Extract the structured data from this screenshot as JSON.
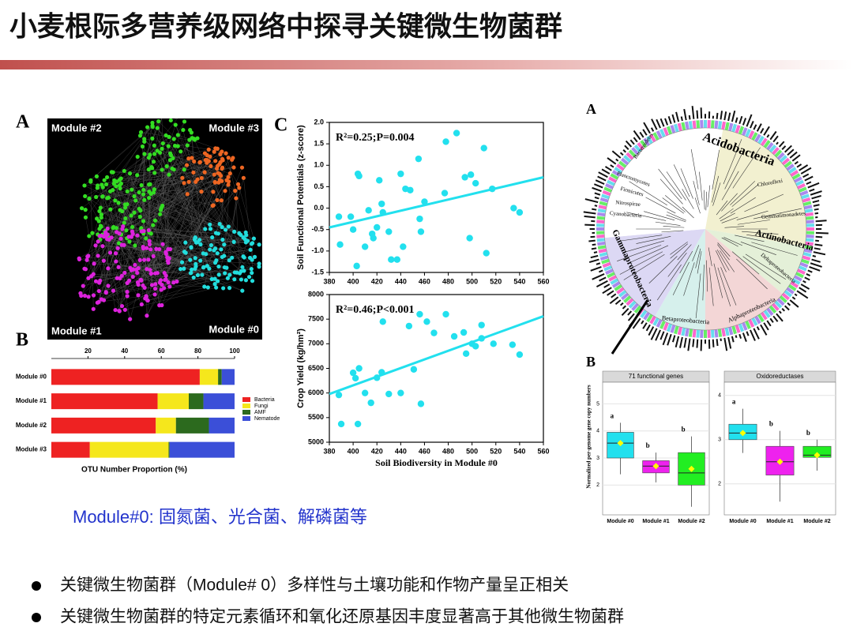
{
  "header": {
    "title": "小麦根际多营养级网络中探寻关键微生物菌群"
  },
  "network": {
    "panel": "A",
    "labels": [
      "Module #2",
      "Module #3",
      "Module #1",
      "Module #0"
    ]
  },
  "tree": {
    "panel": "A",
    "labels": [
      "Acidobacteria",
      "Chloroflexi",
      "Gemmatimonadetes",
      "Actinobacteria",
      "Deltaproteobacteria",
      "Alphaproteobacteria",
      "Betaproteobacteria",
      "Gammaproteobacteria",
      "Cyanobacteria",
      "Nitrospirae",
      "Firmicutes",
      "Planctomycetes",
      "Bacteroidetes"
    ]
  },
  "caption": "Module#0: 固氮菌、光合菌、解磷菌等",
  "bullets": [
    "关键微生物菌群（Module# 0）多样性与土壤功能和作物产量呈正相关",
    "关键微生物菌群的特定元素循环和氧化还原基因丰度显著高于其他微生物菌群"
  ],
  "chart_data": [
    {
      "type": "stacked-bar-h",
      "panel": "B",
      "xlabel": "OTU Number Proportion (%)",
      "categories": [
        "Module #0",
        "Module #1",
        "Module #2",
        "Module #3"
      ],
      "series": [
        {
          "name": "Bacteria",
          "color": "#ee2222",
          "values": [
            81,
            58,
            57,
            21
          ]
        },
        {
          "name": "Fungi",
          "color": "#f5e71c",
          "values": [
            10,
            17,
            11,
            43
          ]
        },
        {
          "name": "AMF",
          "color": "#2c6a1e",
          "values": [
            2,
            8,
            18,
            0.5
          ]
        },
        {
          "name": "Nematode",
          "color": "#3b4fd8",
          "values": [
            7,
            17,
            14,
            35.5
          ]
        }
      ],
      "xlim": [
        0,
        100
      ],
      "xticks": [
        20,
        40,
        60,
        80,
        100
      ],
      "legend": "right"
    },
    {
      "type": "scatter",
      "panel": "C",
      "annotation": "R²=0.25;P=0.004",
      "ylabel": "Soil Functional Potentials (z-score)",
      "color": "#22e0ee",
      "x": [
        388,
        389,
        398,
        400,
        403,
        404,
        405,
        410,
        413,
        416,
        417,
        420,
        422,
        424,
        425,
        430,
        432,
        437,
        440,
        442,
        444,
        448,
        455,
        456,
        457,
        460,
        478,
        477,
        487,
        494,
        498,
        499,
        503,
        510,
        512,
        517,
        535,
        540
      ],
      "values": [
        -0.2,
        -0.85,
        -0.2,
        -0.5,
        -1.35,
        0.8,
        0.75,
        -0.9,
        -0.05,
        -0.6,
        -0.7,
        -0.45,
        0.65,
        0.1,
        -0.1,
        -0.55,
        -1.2,
        -1.2,
        0.8,
        -0.9,
        0.45,
        0.42,
        1.15,
        -0.25,
        -0.55,
        0.15,
        1.55,
        0.35,
        1.75,
        0.72,
        -0.7,
        0.78,
        0.58,
        1.4,
        -1.05,
        0.45,
        0.0,
        -0.1
      ],
      "trend": {
        "x": [
          380,
          560
        ],
        "values": [
          -0.45,
          0.72
        ]
      },
      "xlim": [
        380,
        560
      ],
      "xticks": [
        380,
        400,
        420,
        440,
        460,
        480,
        500,
        520,
        540,
        560
      ],
      "ylim": [
        -1.5,
        2.0
      ],
      "yticks": [
        {
          "value": -1.5,
          "label": "-1.5"
        },
        {
          "value": -1,
          "label": "-1.0"
        },
        {
          "value": -0.5,
          "label": "-0.5"
        },
        {
          "value": 0,
          "label": "0.0"
        },
        {
          "value": 0.5,
          "label": "0.5"
        },
        {
          "value": 1,
          "label": "1.0"
        },
        {
          "value": 1.5,
          "label": "1.5"
        },
        {
          "value": 2,
          "label": "2.0"
        }
      ]
    },
    {
      "type": "scatter",
      "annotation": "R²=0.46;P<0.001",
      "ylabel": "Crop Yield (kg/hm²)",
      "xlabel": "Soil Biodiversity in Module #0",
      "color": "#22e0ee",
      "x": [
        388,
        390,
        400,
        402,
        404,
        405,
        410,
        415,
        420,
        424,
        425,
        430,
        440,
        447,
        451,
        456,
        457,
        462,
        468,
        478,
        485,
        493,
        495,
        500,
        503,
        508,
        508,
        518,
        534,
        540
      ],
      "values": [
        5960,
        5370,
        6410,
        6300,
        5370,
        6500,
        6000,
        5800,
        6310,
        6420,
        7450,
        5980,
        6000,
        7360,
        6480,
        7600,
        5780,
        7450,
        7220,
        7600,
        7150,
        7230,
        6800,
        7000,
        6950,
        7380,
        7110,
        7000,
        6980,
        6780
      ],
      "trend": {
        "x": [
          380,
          560
        ],
        "values": [
          5980,
          7560
        ]
      },
      "xlim": [
        380,
        560
      ],
      "xticks": [
        380,
        400,
        420,
        440,
        460,
        480,
        500,
        520,
        540,
        560
      ],
      "ylim": [
        5000,
        8000
      ],
      "yticks": [
        5000,
        5500,
        6000,
        6500,
        7000,
        7500,
        8000
      ]
    },
    {
      "type": "box",
      "panel": "B",
      "title": "71 functional genes",
      "ylabel": "Normalized per-genome gene copy numbers",
      "categories": [
        "Module #0",
        "Module #1",
        "Module #2"
      ],
      "colors": [
        "#22e0ee",
        "#ee22ee",
        "#22ee22"
      ],
      "min": [
        2.4,
        2.1,
        1.2
      ],
      "q1": [
        3.0,
        2.45,
        2.0
      ],
      "median": [
        3.55,
        2.7,
        2.45
      ],
      "q3": [
        3.95,
        2.9,
        3.2
      ],
      "max": [
        4.3,
        3.2,
        3.8
      ],
      "mean": [
        3.55,
        2.7,
        2.6
      ],
      "letters": [
        "a",
        "b",
        "b"
      ],
      "ylim": [
        0.9,
        5.8
      ],
      "yticks": [
        2,
        3,
        4,
        5
      ]
    },
    {
      "type": "box",
      "title": "Oxidoreductases",
      "categories": [
        "Module #0",
        "Module #1",
        "Module #2"
      ],
      "colors": [
        "#22e0ee",
        "#ee22ee",
        "#22ee22"
      ],
      "min": [
        2.7,
        1.6,
        2.3
      ],
      "q1": [
        3.0,
        2.2,
        2.6
      ],
      "median": [
        3.15,
        2.5,
        2.65
      ],
      "q3": [
        3.35,
        2.85,
        2.85
      ],
      "max": [
        3.7,
        3.2,
        3.0
      ],
      "mean": [
        3.15,
        2.5,
        2.65
      ],
      "letters": [
        "a",
        "b",
        "b"
      ],
      "ylim": [
        1.3,
        4.3
      ],
      "yticks": [
        2,
        3,
        4
      ]
    }
  ]
}
